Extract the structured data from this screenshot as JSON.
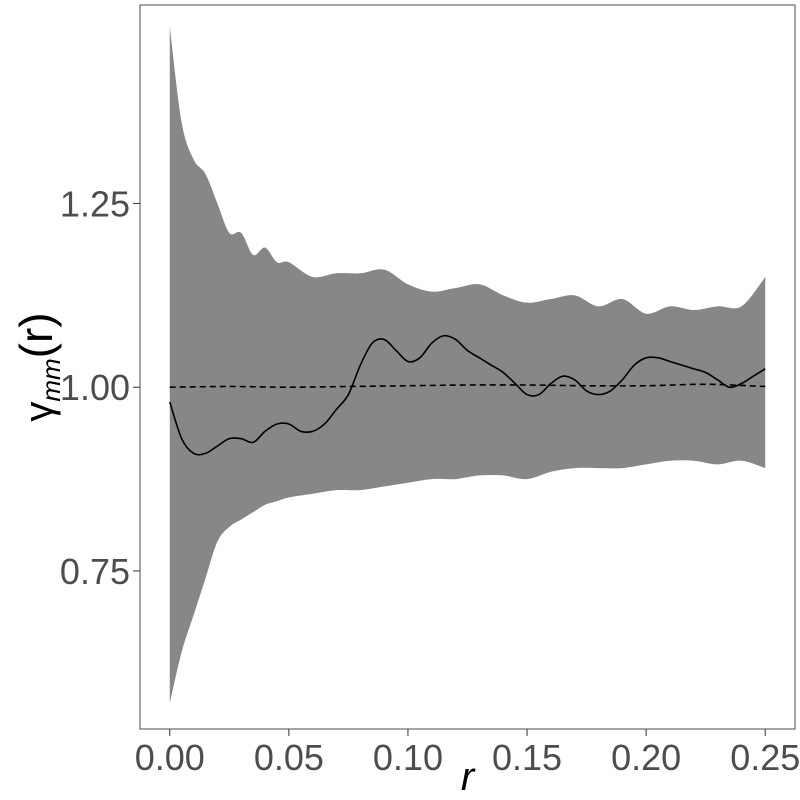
{
  "chart_data": {
    "type": "area",
    "xlabel": "r",
    "ylabel_main": "γ",
    "ylabel_sub": "mm",
    "ylabel_tail": "(r)",
    "xlim": [
      -0.0125,
      0.2625
    ],
    "ylim": [
      0.535,
      1.52
    ],
    "x_ticks": [
      0.0,
      0.05,
      0.1,
      0.15,
      0.2,
      0.25
    ],
    "x_tick_labels": [
      "0.00",
      "0.05",
      "0.10",
      "0.15",
      "0.20",
      "0.25"
    ],
    "y_ticks": [
      0.75,
      1.0,
      1.25
    ],
    "y_tick_labels": [
      "0.75",
      "1.00",
      "1.25"
    ],
    "grid": false,
    "legend": "none",
    "colors": {
      "envelope": "#878787",
      "observed": "#000000",
      "theoretical": "#000000",
      "frame": "#4d4d4d"
    },
    "envelope": {
      "x": [
        0.0,
        0.005,
        0.01,
        0.015,
        0.02,
        0.025,
        0.03,
        0.035,
        0.04,
        0.045,
        0.05,
        0.06,
        0.07,
        0.08,
        0.09,
        0.1,
        0.11,
        0.12,
        0.13,
        0.14,
        0.15,
        0.16,
        0.17,
        0.18,
        0.19,
        0.2,
        0.21,
        0.22,
        0.23,
        0.24,
        0.25
      ],
      "upper": [
        1.49,
        1.36,
        1.31,
        1.29,
        1.25,
        1.21,
        1.21,
        1.18,
        1.19,
        1.17,
        1.17,
        1.15,
        1.155,
        1.155,
        1.16,
        1.14,
        1.13,
        1.135,
        1.14,
        1.125,
        1.115,
        1.12,
        1.125,
        1.11,
        1.12,
        1.1,
        1.11,
        1.105,
        1.11,
        1.11,
        1.15
      ],
      "lower": [
        0.57,
        0.64,
        0.69,
        0.74,
        0.79,
        0.81,
        0.82,
        0.83,
        0.84,
        0.845,
        0.85,
        0.855,
        0.86,
        0.86,
        0.865,
        0.87,
        0.875,
        0.875,
        0.88,
        0.88,
        0.875,
        0.885,
        0.89,
        0.89,
        0.89,
        0.895,
        0.9,
        0.9,
        0.895,
        0.9,
        0.89
      ]
    },
    "series": [
      {
        "style": "solid",
        "x": [
          0.0,
          0.005,
          0.01,
          0.015,
          0.02,
          0.025,
          0.03,
          0.035,
          0.04,
          0.045,
          0.05,
          0.055,
          0.06,
          0.065,
          0.07,
          0.075,
          0.08,
          0.085,
          0.09,
          0.095,
          0.1,
          0.105,
          0.11,
          0.115,
          0.12,
          0.125,
          0.13,
          0.135,
          0.14,
          0.145,
          0.15,
          0.155,
          0.16,
          0.165,
          0.17,
          0.175,
          0.18,
          0.185,
          0.19,
          0.195,
          0.2,
          0.205,
          0.21,
          0.215,
          0.22,
          0.225,
          0.23,
          0.235,
          0.24,
          0.245,
          0.25
        ],
        "values": [
          0.98,
          0.93,
          0.91,
          0.91,
          0.92,
          0.93,
          0.93,
          0.925,
          0.94,
          0.95,
          0.95,
          0.94,
          0.94,
          0.95,
          0.97,
          0.99,
          1.03,
          1.06,
          1.065,
          1.05,
          1.035,
          1.04,
          1.06,
          1.07,
          1.065,
          1.05,
          1.04,
          1.03,
          1.02,
          1.005,
          0.99,
          0.99,
          1.005,
          1.015,
          1.01,
          0.995,
          0.99,
          0.995,
          1.01,
          1.03,
          1.04,
          1.04,
          1.035,
          1.03,
          1.025,
          1.02,
          1.01,
          1.0,
          1.005,
          1.015,
          1.025
        ]
      },
      {
        "style": "dashed",
        "x": [
          0.0,
          0.025,
          0.05,
          0.075,
          0.1,
          0.125,
          0.15,
          0.175,
          0.2,
          0.225,
          0.25
        ],
        "values": [
          1.0,
          1.001,
          1.0,
          1.001,
          1.002,
          1.003,
          1.003,
          1.002,
          1.002,
          1.004,
          1.001
        ]
      }
    ]
  }
}
